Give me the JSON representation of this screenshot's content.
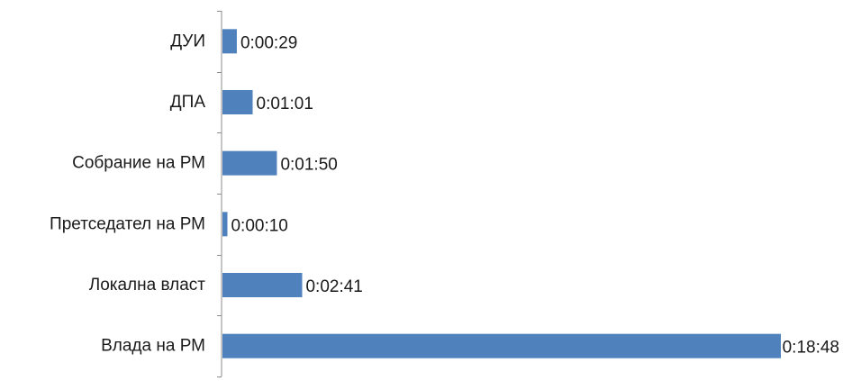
{
  "chart_data": {
    "type": "bar",
    "orientation": "horizontal",
    "categories": [
      "ДУИ",
      "ДПА",
      "Собрание на РМ",
      "Претседател на РМ",
      "Локална власт",
      "Влада на РМ"
    ],
    "values_seconds": [
      29,
      61,
      110,
      10,
      161,
      1128
    ],
    "data_labels": [
      "0:00:29",
      "0:01:01",
      "0:01:50",
      "0:00:10",
      "0:02:41",
      "0:18:48"
    ],
    "x_unit": "h:mm:ss",
    "title": "",
    "xlabel": "",
    "ylabel": "",
    "xlim": [
      0,
      1128
    ],
    "legend": "none",
    "grid": false,
    "bar_color": "#4f81bd",
    "axis_color": "#8c8c8c"
  }
}
